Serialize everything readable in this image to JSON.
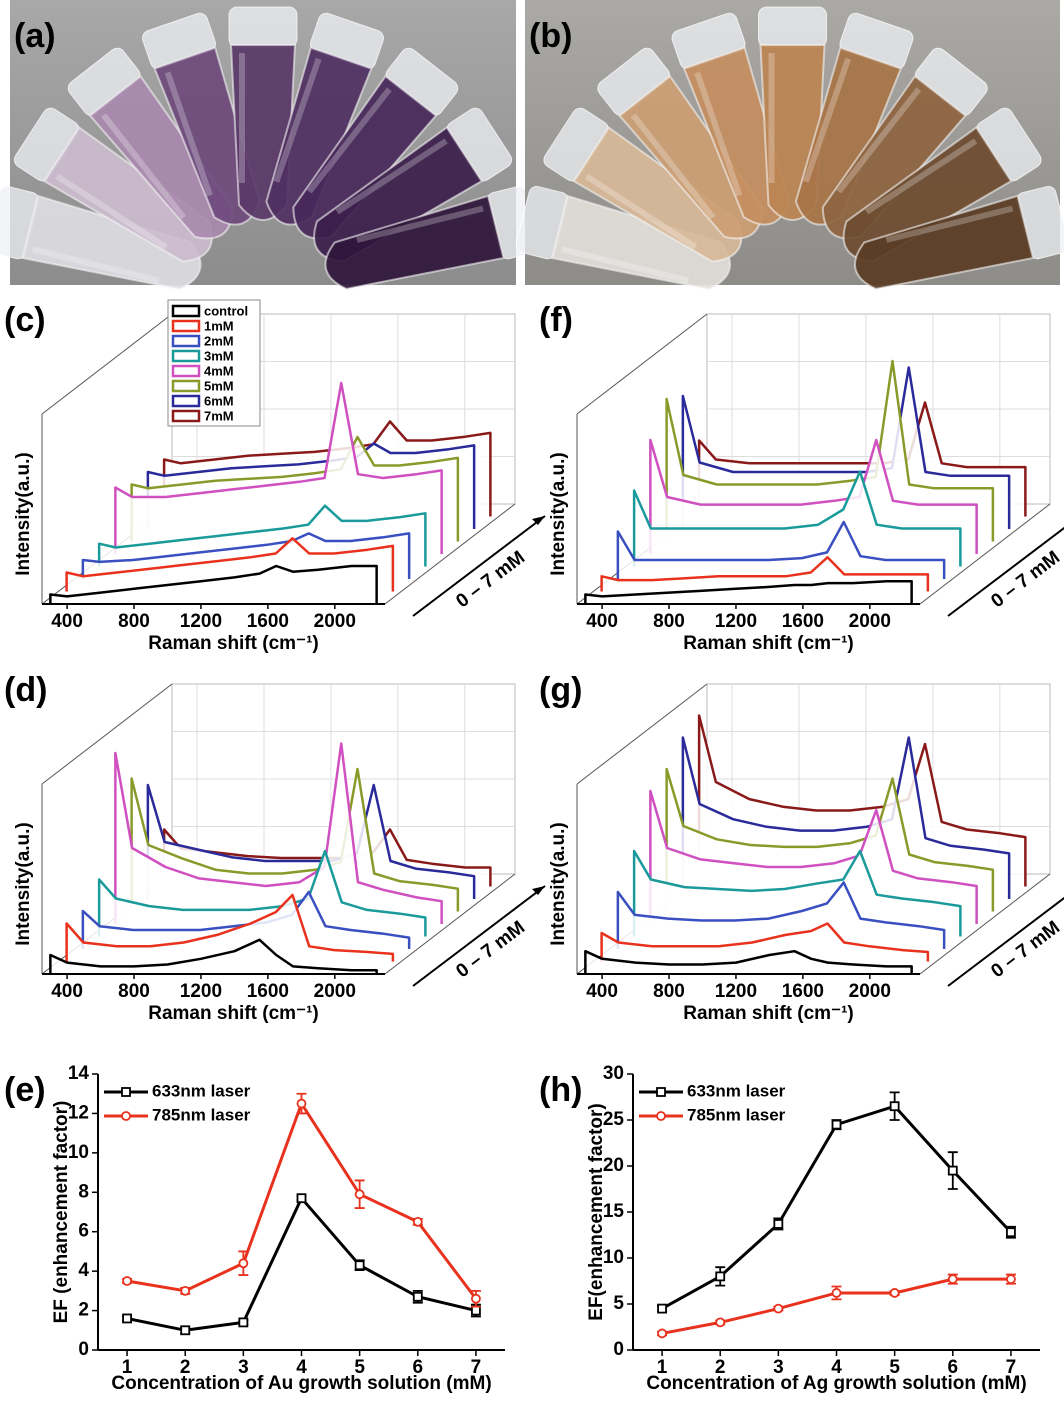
{
  "photos": [
    {
      "label": "(a)"
    },
    {
      "label": "(b)"
    }
  ],
  "chart_data": [
    {
      "type": "waterfall",
      "panel_label": "(c)",
      "xlabel": "Raman shift (cm⁻¹)",
      "ylabel": "Intensity(a.u.)",
      "depth_label": "0 – 7 mM",
      "x": [
        300,
        400,
        600,
        800,
        1000,
        1200,
        1400,
        1550,
        1650,
        1750,
        1900,
        2100,
        2250
      ],
      "xlim": [
        250,
        2300
      ],
      "xticks": [
        400,
        800,
        1200,
        1600,
        2000
      ],
      "ylim": [
        0,
        1
      ],
      "series": [
        {
          "name": "control",
          "color": "#000000",
          "values": [
            0.05,
            0.04,
            0.06,
            0.08,
            0.1,
            0.12,
            0.14,
            0.16,
            0.2,
            0.17,
            0.18,
            0.2,
            0.2
          ]
        },
        {
          "name": "1mM",
          "color": "#e8321e",
          "values": [
            0.1,
            0.08,
            0.1,
            0.12,
            0.14,
            0.16,
            0.18,
            0.2,
            0.28,
            0.2,
            0.2,
            0.22,
            0.24
          ]
        },
        {
          "name": "2mM",
          "color": "#3a4fc0",
          "values": [
            0.1,
            0.09,
            0.1,
            0.12,
            0.14,
            0.16,
            0.18,
            0.2,
            0.24,
            0.2,
            0.2,
            0.22,
            0.24
          ]
        },
        {
          "name": "3mM",
          "color": "#1a9a9a",
          "values": [
            0.12,
            0.1,
            0.12,
            0.14,
            0.16,
            0.18,
            0.2,
            0.22,
            0.32,
            0.24,
            0.24,
            0.26,
            0.28
          ]
        },
        {
          "name": "4mM",
          "color": "#d050c0",
          "values": [
            0.35,
            0.3,
            0.3,
            0.32,
            0.34,
            0.36,
            0.38,
            0.4,
            0.9,
            0.42,
            0.4,
            0.42,
            0.44
          ]
        },
        {
          "name": "5mM",
          "color": "#8a9a2a",
          "values": [
            0.3,
            0.28,
            0.3,
            0.32,
            0.33,
            0.34,
            0.36,
            0.38,
            0.55,
            0.4,
            0.4,
            0.42,
            0.44
          ]
        },
        {
          "name": "6mM",
          "color": "#2a2a9a",
          "values": [
            0.3,
            0.28,
            0.3,
            0.32,
            0.33,
            0.34,
            0.36,
            0.38,
            0.45,
            0.4,
            0.4,
            0.42,
            0.44
          ]
        },
        {
          "name": "7mM",
          "color": "#8a1a1a",
          "values": [
            0.3,
            0.28,
            0.3,
            0.32,
            0.33,
            0.34,
            0.36,
            0.38,
            0.5,
            0.4,
            0.4,
            0.42,
            0.44
          ]
        }
      ]
    },
    {
      "type": "waterfall",
      "panel_label": "(f)",
      "xlabel": "Raman shift (cm⁻¹)",
      "ylabel": "Intensity(a.u.)",
      "depth_label": "0 – 7 mM",
      "x": [
        300,
        400,
        600,
        800,
        1000,
        1200,
        1400,
        1550,
        1650,
        1750,
        1900,
        2100,
        2250
      ],
      "xlim": [
        250,
        2300
      ],
      "xticks": [
        400,
        800,
        1200,
        1600,
        2000
      ],
      "ylim": [
        0,
        1
      ],
      "series": [
        {
          "color": "#000000",
          "values": [
            0.05,
            0.04,
            0.05,
            0.06,
            0.07,
            0.08,
            0.09,
            0.1,
            0.1,
            0.11,
            0.11,
            0.12,
            0.12
          ]
        },
        {
          "color": "#e8321e",
          "values": [
            0.08,
            0.06,
            0.06,
            0.07,
            0.08,
            0.08,
            0.08,
            0.1,
            0.18,
            0.09,
            0.09,
            0.09,
            0.09
          ]
        },
        {
          "color": "#3a4fc0",
          "values": [
            0.25,
            0.1,
            0.1,
            0.1,
            0.1,
            0.1,
            0.11,
            0.14,
            0.3,
            0.12,
            0.1,
            0.1,
            0.1
          ]
        },
        {
          "color": "#1a9a9a",
          "values": [
            0.4,
            0.2,
            0.2,
            0.2,
            0.2,
            0.2,
            0.22,
            0.3,
            0.5,
            0.22,
            0.2,
            0.2,
            0.2
          ]
        },
        {
          "color": "#d050c0",
          "values": [
            0.6,
            0.3,
            0.26,
            0.26,
            0.26,
            0.26,
            0.28,
            0.3,
            0.6,
            0.28,
            0.26,
            0.26,
            0.26
          ]
        },
        {
          "color": "#8a9a2a",
          "values": [
            0.75,
            0.35,
            0.3,
            0.3,
            0.3,
            0.3,
            0.32,
            0.34,
            0.95,
            0.3,
            0.28,
            0.28,
            0.28
          ]
        },
        {
          "color": "#2a2a9a",
          "values": [
            0.7,
            0.35,
            0.3,
            0.3,
            0.3,
            0.3,
            0.3,
            0.32,
            0.85,
            0.3,
            0.28,
            0.28,
            0.28
          ]
        },
        {
          "color": "#8a1a1a",
          "values": [
            0.4,
            0.3,
            0.28,
            0.28,
            0.28,
            0.28,
            0.28,
            0.3,
            0.6,
            0.28,
            0.26,
            0.26,
            0.26
          ]
        }
      ]
    },
    {
      "type": "waterfall",
      "panel_label": "(d)",
      "xlabel": "Raman shift (cm⁻¹)",
      "ylabel": "Intensity(a.u.)",
      "depth_label": "0 – 7 mM",
      "x": [
        300,
        400,
        600,
        800,
        1000,
        1200,
        1400,
        1550,
        1650,
        1750,
        1900,
        2100,
        2250
      ],
      "xlim": [
        250,
        2300
      ],
      "xticks": [
        400,
        800,
        1200,
        1600,
        2000
      ],
      "ylim": [
        0,
        1
      ],
      "series": [
        {
          "color": "#000000",
          "values": [
            0.1,
            0.06,
            0.04,
            0.04,
            0.05,
            0.08,
            0.12,
            0.18,
            0.1,
            0.04,
            0.03,
            0.02,
            0.02
          ]
        },
        {
          "color": "#e8321e",
          "values": [
            0.2,
            0.1,
            0.08,
            0.08,
            0.1,
            0.14,
            0.2,
            0.26,
            0.35,
            0.08,
            0.06,
            0.05,
            0.04
          ]
        },
        {
          "color": "#3a4fc0",
          "values": [
            0.2,
            0.12,
            0.1,
            0.1,
            0.1,
            0.12,
            0.14,
            0.18,
            0.3,
            0.12,
            0.1,
            0.08,
            0.06
          ]
        },
        {
          "color": "#1a9a9a",
          "values": [
            0.3,
            0.2,
            0.16,
            0.14,
            0.14,
            0.14,
            0.16,
            0.2,
            0.45,
            0.18,
            0.14,
            0.12,
            0.1
          ]
        },
        {
          "color": "#d050c0",
          "values": [
            0.9,
            0.4,
            0.3,
            0.24,
            0.22,
            0.2,
            0.22,
            0.3,
            0.95,
            0.22,
            0.18,
            0.14,
            0.12
          ]
        },
        {
          "color": "#8a9a2a",
          "values": [
            0.7,
            0.35,
            0.28,
            0.22,
            0.2,
            0.2,
            0.22,
            0.26,
            0.75,
            0.2,
            0.16,
            0.14,
            0.12
          ]
        },
        {
          "color": "#2a2a9a",
          "values": [
            0.6,
            0.3,
            0.26,
            0.22,
            0.2,
            0.2,
            0.2,
            0.24,
            0.6,
            0.2,
            0.16,
            0.14,
            0.12
          ]
        },
        {
          "color": "#8a1a1a",
          "values": [
            0.3,
            0.2,
            0.18,
            0.16,
            0.15,
            0.15,
            0.15,
            0.18,
            0.3,
            0.14,
            0.12,
            0.1,
            0.1
          ]
        }
      ]
    },
    {
      "type": "waterfall",
      "panel_label": "(g)",
      "xlabel": "Raman shift (cm⁻¹)",
      "ylabel": "Intensity(a.u.)",
      "depth_label": "0 – 7 mM",
      "x": [
        300,
        400,
        600,
        800,
        1000,
        1200,
        1400,
        1550,
        1650,
        1750,
        1900,
        2100,
        2250
      ],
      "xlim": [
        250,
        2300
      ],
      "xticks": [
        400,
        800,
        1200,
        1600,
        2000
      ],
      "ylim": [
        0,
        1
      ],
      "series": [
        {
          "color": "#000000",
          "values": [
            0.12,
            0.08,
            0.06,
            0.05,
            0.05,
            0.06,
            0.1,
            0.12,
            0.08,
            0.06,
            0.05,
            0.04,
            0.04
          ]
        },
        {
          "color": "#e8321e",
          "values": [
            0.15,
            0.1,
            0.08,
            0.08,
            0.08,
            0.1,
            0.14,
            0.16,
            0.2,
            0.1,
            0.08,
            0.06,
            0.05
          ]
        },
        {
          "color": "#3a4fc0",
          "values": [
            0.3,
            0.18,
            0.16,
            0.15,
            0.15,
            0.16,
            0.2,
            0.24,
            0.35,
            0.16,
            0.14,
            0.12,
            0.1
          ]
        },
        {
          "color": "#1a9a9a",
          "values": [
            0.45,
            0.3,
            0.26,
            0.25,
            0.24,
            0.25,
            0.28,
            0.3,
            0.45,
            0.22,
            0.2,
            0.18,
            0.16
          ]
        },
        {
          "color": "#d050c0",
          "values": [
            0.7,
            0.4,
            0.34,
            0.32,
            0.3,
            0.3,
            0.32,
            0.36,
            0.6,
            0.28,
            0.24,
            0.22,
            0.2
          ]
        },
        {
          "color": "#8a9a2a",
          "values": [
            0.75,
            0.45,
            0.38,
            0.35,
            0.34,
            0.34,
            0.36,
            0.4,
            0.7,
            0.3,
            0.26,
            0.24,
            0.22
          ]
        },
        {
          "color": "#2a2a9a",
          "values": [
            0.85,
            0.5,
            0.42,
            0.38,
            0.36,
            0.36,
            0.38,
            0.42,
            0.85,
            0.32,
            0.28,
            0.26,
            0.24
          ]
        },
        {
          "color": "#8a1a1a",
          "values": [
            0.9,
            0.55,
            0.46,
            0.42,
            0.4,
            0.4,
            0.42,
            0.46,
            0.75,
            0.34,
            0.3,
            0.28,
            0.26
          ]
        }
      ]
    },
    {
      "type": "line",
      "panel_label": "(e)",
      "xlabel": "Concentration of Au growth solution (mM)",
      "ylabel": "EF (enhancement factor)",
      "x": [
        1,
        2,
        3,
        4,
        5,
        6,
        7
      ],
      "xlim": [
        0.5,
        7.5
      ],
      "xticks": [
        1,
        2,
        3,
        4,
        5,
        6,
        7
      ],
      "ylim": [
        0,
        14
      ],
      "yticks": [
        0,
        2,
        4,
        6,
        8,
        10,
        12,
        14
      ],
      "legend": "upper left",
      "series": [
        {
          "name": "633nm laser",
          "color": "#000000",
          "marker": "square",
          "values": [
            1.6,
            1.0,
            1.4,
            7.7,
            4.3,
            2.7,
            2.0
          ],
          "errors": [
            0.1,
            0.15,
            0.1,
            0.1,
            0.25,
            0.3,
            0.3
          ]
        },
        {
          "name": "785nm laser",
          "color": "#e8321e",
          "marker": "circle",
          "values": [
            3.5,
            3.0,
            4.4,
            12.5,
            7.9,
            6.5,
            2.6
          ],
          "errors": [
            0.1,
            0.15,
            0.6,
            0.5,
            0.7,
            0.15,
            0.4
          ]
        }
      ]
    },
    {
      "type": "line",
      "panel_label": "(h)",
      "xlabel": "Concentration of Ag growth solution (mM)",
      "ylabel": "EF(enhancement factor)",
      "x": [
        1,
        2,
        3,
        4,
        5,
        6,
        7
      ],
      "xlim": [
        0.5,
        7.5
      ],
      "xticks": [
        1,
        2,
        3,
        4,
        5,
        6,
        7
      ],
      "ylim": [
        0,
        30
      ],
      "yticks": [
        0,
        5,
        10,
        15,
        20,
        25,
        30
      ],
      "legend": "upper left",
      "series": [
        {
          "name": "633nm laser",
          "color": "#000000",
          "marker": "square",
          "values": [
            4.5,
            8.0,
            13.7,
            24.5,
            26.5,
            19.5,
            12.8
          ],
          "errors": [
            0.3,
            1.0,
            0.6,
            0.5,
            1.5,
            2.0,
            0.6
          ]
        },
        {
          "name": "785nm laser",
          "color": "#e8321e",
          "marker": "circle",
          "values": [
            1.8,
            3.0,
            4.5,
            6.2,
            6.2,
            7.7,
            7.7
          ],
          "errors": [
            0.2,
            0.2,
            0.2,
            0.7,
            0.2,
            0.5,
            0.5
          ]
        }
      ]
    }
  ]
}
